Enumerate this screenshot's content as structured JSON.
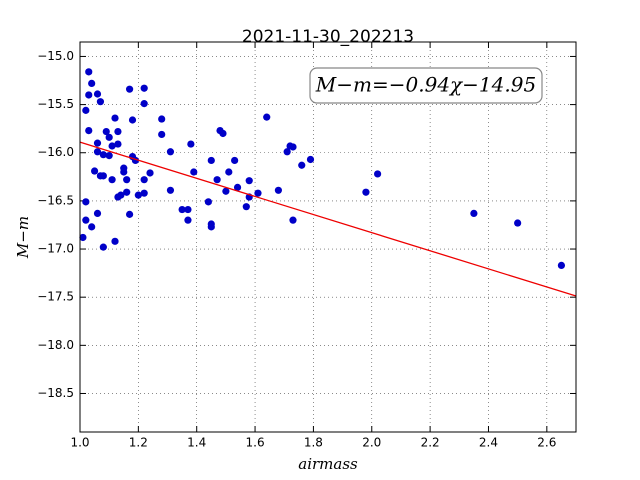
{
  "chart_data": {
    "type": "scatter",
    "title": "2021-11-30_202213",
    "x_label": "airmass",
    "y_label": "M−m",
    "annotation": "M−m=−0.94χ−14.95",
    "fit": {
      "slope": -0.94,
      "intercept": -14.95,
      "color": "#ee0000"
    },
    "series": [
      {
        "color": "#0000c8",
        "x": [
          1.01,
          1.02,
          1.02,
          1.02,
          1.03,
          1.03,
          1.04,
          1.03,
          1.04,
          1.05,
          1.06,
          1.06,
          1.06,
          1.06,
          1.07,
          1.07,
          1.08,
          1.08,
          1.08,
          1.09,
          1.1,
          1.1,
          1.11,
          1.11,
          1.12,
          1.12,
          1.13,
          1.13,
          1.13,
          1.14,
          1.15,
          1.15,
          1.16,
          1.16,
          1.17,
          1.17,
          1.18,
          1.18,
          1.19,
          1.2,
          1.22,
          1.22,
          1.22,
          1.22,
          1.24,
          1.28,
          1.28,
          1.31,
          1.31,
          1.35,
          1.37,
          1.37,
          1.38,
          1.39,
          1.44,
          1.45,
          1.45,
          1.45,
          1.47,
          1.48,
          1.49,
          1.5,
          1.51,
          1.53,
          1.54,
          1.57,
          1.58,
          1.58,
          1.61,
          1.64,
          1.68,
          1.71,
          1.72,
          1.73,
          1.73,
          1.76,
          1.79,
          1.98,
          2.02,
          2.35,
          2.5,
          2.65
        ],
        "values": [
          -16.88,
          -16.7,
          -15.56,
          -16.51,
          -15.77,
          -15.16,
          -15.28,
          -15.4,
          -16.77,
          -16.19,
          -15.39,
          -15.99,
          -16.63,
          -15.9,
          -16.24,
          -15.47,
          -16.02,
          -16.98,
          -16.24,
          -15.78,
          -15.84,
          -16.03,
          -15.93,
          -16.28,
          -15.64,
          -16.92,
          -15.91,
          -16.46,
          -15.78,
          -16.44,
          -16.2,
          -16.16,
          -16.28,
          -16.41,
          -16.64,
          -15.34,
          -15.66,
          -16.04,
          -16.08,
          -16.44,
          -15.49,
          -15.33,
          -16.42,
          -16.28,
          -16.21,
          -15.65,
          -15.81,
          -15.99,
          -16.39,
          -16.59,
          -16.7,
          -16.59,
          -15.91,
          -16.2,
          -16.51,
          -16.08,
          -16.74,
          -16.77,
          -16.28,
          -15.77,
          -15.8,
          -16.4,
          -16.2,
          -16.08,
          -16.36,
          -16.56,
          -16.29,
          -16.46,
          -16.42,
          -15.63,
          -16.39,
          -15.99,
          -15.93,
          -16.7,
          -15.94,
          -16.13,
          -16.07,
          -16.41,
          -16.22,
          -16.63,
          -16.73,
          -17.17
        ]
      }
    ],
    "xlim": [
      1,
      2.7
    ],
    "xticks": [
      {
        "value": 1,
        "label": "1.0"
      },
      1.2,
      1.4,
      1.6,
      1.8,
      {
        "value": 2,
        "label": "2.0"
      },
      2.2,
      2.4,
      2.6
    ],
    "ylim": [
      -18.9,
      -14.85
    ],
    "yticks": [
      {
        "value": -15,
        "label": "−15.0"
      },
      {
        "value": -15.5,
        "label": "−15.5"
      },
      {
        "value": -16,
        "label": "−16.0"
      },
      {
        "value": -16.5,
        "label": "−16.5"
      },
      {
        "value": -17,
        "label": "−17.0"
      },
      {
        "value": -17.5,
        "label": "−17.5"
      },
      {
        "value": -18,
        "label": "−18.0"
      },
      {
        "value": -18.5,
        "label": "−18.5"
      }
    ],
    "grid": true
  }
}
